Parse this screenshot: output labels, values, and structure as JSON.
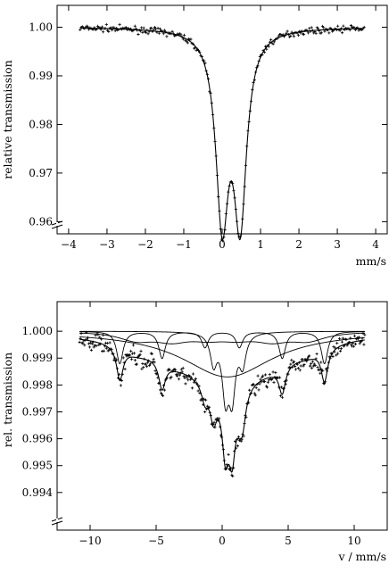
{
  "chart_data": [
    {
      "type": "line",
      "title": "",
      "xlabel": "mm/s",
      "ylabel": "relative transmission",
      "xlim": [
        -4.3,
        4.3
      ],
      "ylim": [
        0.9575,
        1.0045
      ],
      "xticks": [
        -4,
        -3,
        -2,
        -1,
        0,
        1,
        2,
        3,
        4
      ],
      "xtick_labels": [
        "−4",
        "−3",
        "−2",
        "−1",
        "0",
        "1",
        "2",
        "3",
        "4"
      ],
      "yticks": [
        0.96,
        0.97,
        0.98,
        0.99,
        1.0
      ],
      "ytick_labels": [
        "0.96",
        "0.97",
        "0.98",
        "0.99",
        "1.00"
      ],
      "y_axis_break": true,
      "grid": false,
      "data_range_x": [
        -3.7,
        3.7
      ],
      "series": [
        {
          "role": "measured",
          "style": "markers"
        },
        {
          "role": "fit",
          "style": "line"
        }
      ],
      "components": [
        {
          "kind": "lorentzian",
          "center": 0.0,
          "depth": 0.0378,
          "hwhm": 0.2
        },
        {
          "kind": "lorentzian",
          "center": 0.47,
          "depth": 0.0378,
          "hwhm": 0.2
        }
      ]
    },
    {
      "type": "line",
      "title": "",
      "xlabel": "v  /  mm/s",
      "ylabel": "rel. transmission",
      "xlim": [
        -12.5,
        12.5
      ],
      "ylim": [
        0.9926,
        1.0011
      ],
      "xticks": [
        -10,
        -5,
        0,
        5,
        10
      ],
      "xtick_labels": [
        "−10",
        "−5",
        "0",
        "5",
        "10"
      ],
      "yticks": [
        0.994,
        0.995,
        0.996,
        0.997,
        0.998,
        0.999,
        1.0
      ],
      "ytick_labels": [
        "0.994",
        "0.995",
        "0.996",
        "0.997",
        "0.998",
        "0.999",
        "1.000"
      ],
      "y_axis_break": true,
      "grid": false,
      "data_range_x": [
        -10.8,
        10.8
      ],
      "series": [
        {
          "role": "measured",
          "style": "markers"
        },
        {
          "role": "total fit",
          "style": "line"
        },
        {
          "role": "subspectra",
          "style": "line"
        }
      ],
      "components": [
        {
          "kind": "sextet",
          "center": 0.35,
          "lines": [
            -7.75,
            -4.55,
            -1.3,
            1.3,
            4.55,
            7.75
          ],
          "depths": [
            0.0012,
            0.001,
            0.0006,
            0.0006,
            0.001,
            0.0012
          ],
          "hwhm": 0.3
        },
        {
          "kind": "broad-sextet",
          "center": 0.4,
          "lines": [
            -6.5,
            -3.8,
            -1.1,
            1.1,
            3.8,
            6.5
          ],
          "depths": [
            0.0003,
            0.0003,
            0.0002,
            0.0002,
            0.0003,
            0.0003
          ],
          "hwhm": 1.6
        },
        {
          "kind": "doublet",
          "lines": [
            -0.65,
            0.25,
            0.75,
            1.55
          ],
          "depths": [
            0.0011,
            0.0022,
            0.0022,
            0.0011
          ],
          "hwhm": 0.3
        },
        {
          "kind": "broad-singlet",
          "center": 0.4,
          "depth": 0.0017,
          "hwhm": 4.2
        }
      ]
    }
  ]
}
